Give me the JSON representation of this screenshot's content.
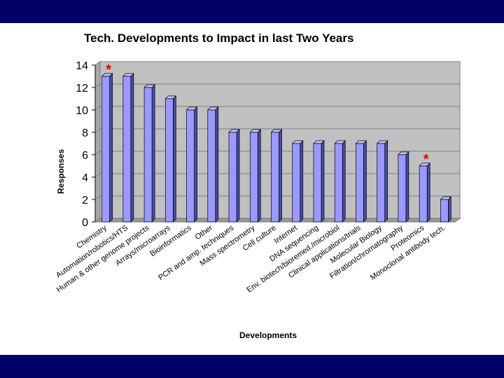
{
  "chart_data": {
    "type": "bar",
    "title": "Tech. Developments to Impact in last Two Years",
    "xlabel": "Developments",
    "ylabel": "Responses",
    "ylim": [
      0,
      14
    ],
    "yticks": [
      0,
      2,
      4,
      6,
      8,
      10,
      12,
      14
    ],
    "grid": true,
    "categories": [
      "Chemistry",
      "Automation/robotics/HTS",
      "Human & other genome projects",
      "Arrays/microarrays",
      "Bioinformatics",
      "Other",
      "PCR and amp. techniques",
      "Mass spectrometry",
      "Cell culture",
      "Internet",
      "DNA sequencing",
      "Env. biotech/bioremed./microbiol",
      "Clinical applications/trials",
      "Molecular Biology",
      "Filtration/chromatography",
      "Proteomics",
      "Monoclonal antibody tech."
    ],
    "values": [
      13,
      13,
      12,
      11,
      10,
      10,
      8,
      8,
      8,
      7,
      7,
      7,
      7,
      7,
      6,
      5,
      2
    ],
    "annotations": [
      {
        "text": "*",
        "category_index": 0
      },
      {
        "text": "*",
        "category_index": 15
      }
    ],
    "colors": {
      "bar_front": "#9999ff",
      "bar_side": "#4a4aa8",
      "bar_top": "#c6c6ff",
      "plot_wall": "#c0c0c0",
      "floor": "#9a9a9a",
      "annotation": "#e00000"
    }
  },
  "frame": {
    "band_color": "#000066"
  }
}
